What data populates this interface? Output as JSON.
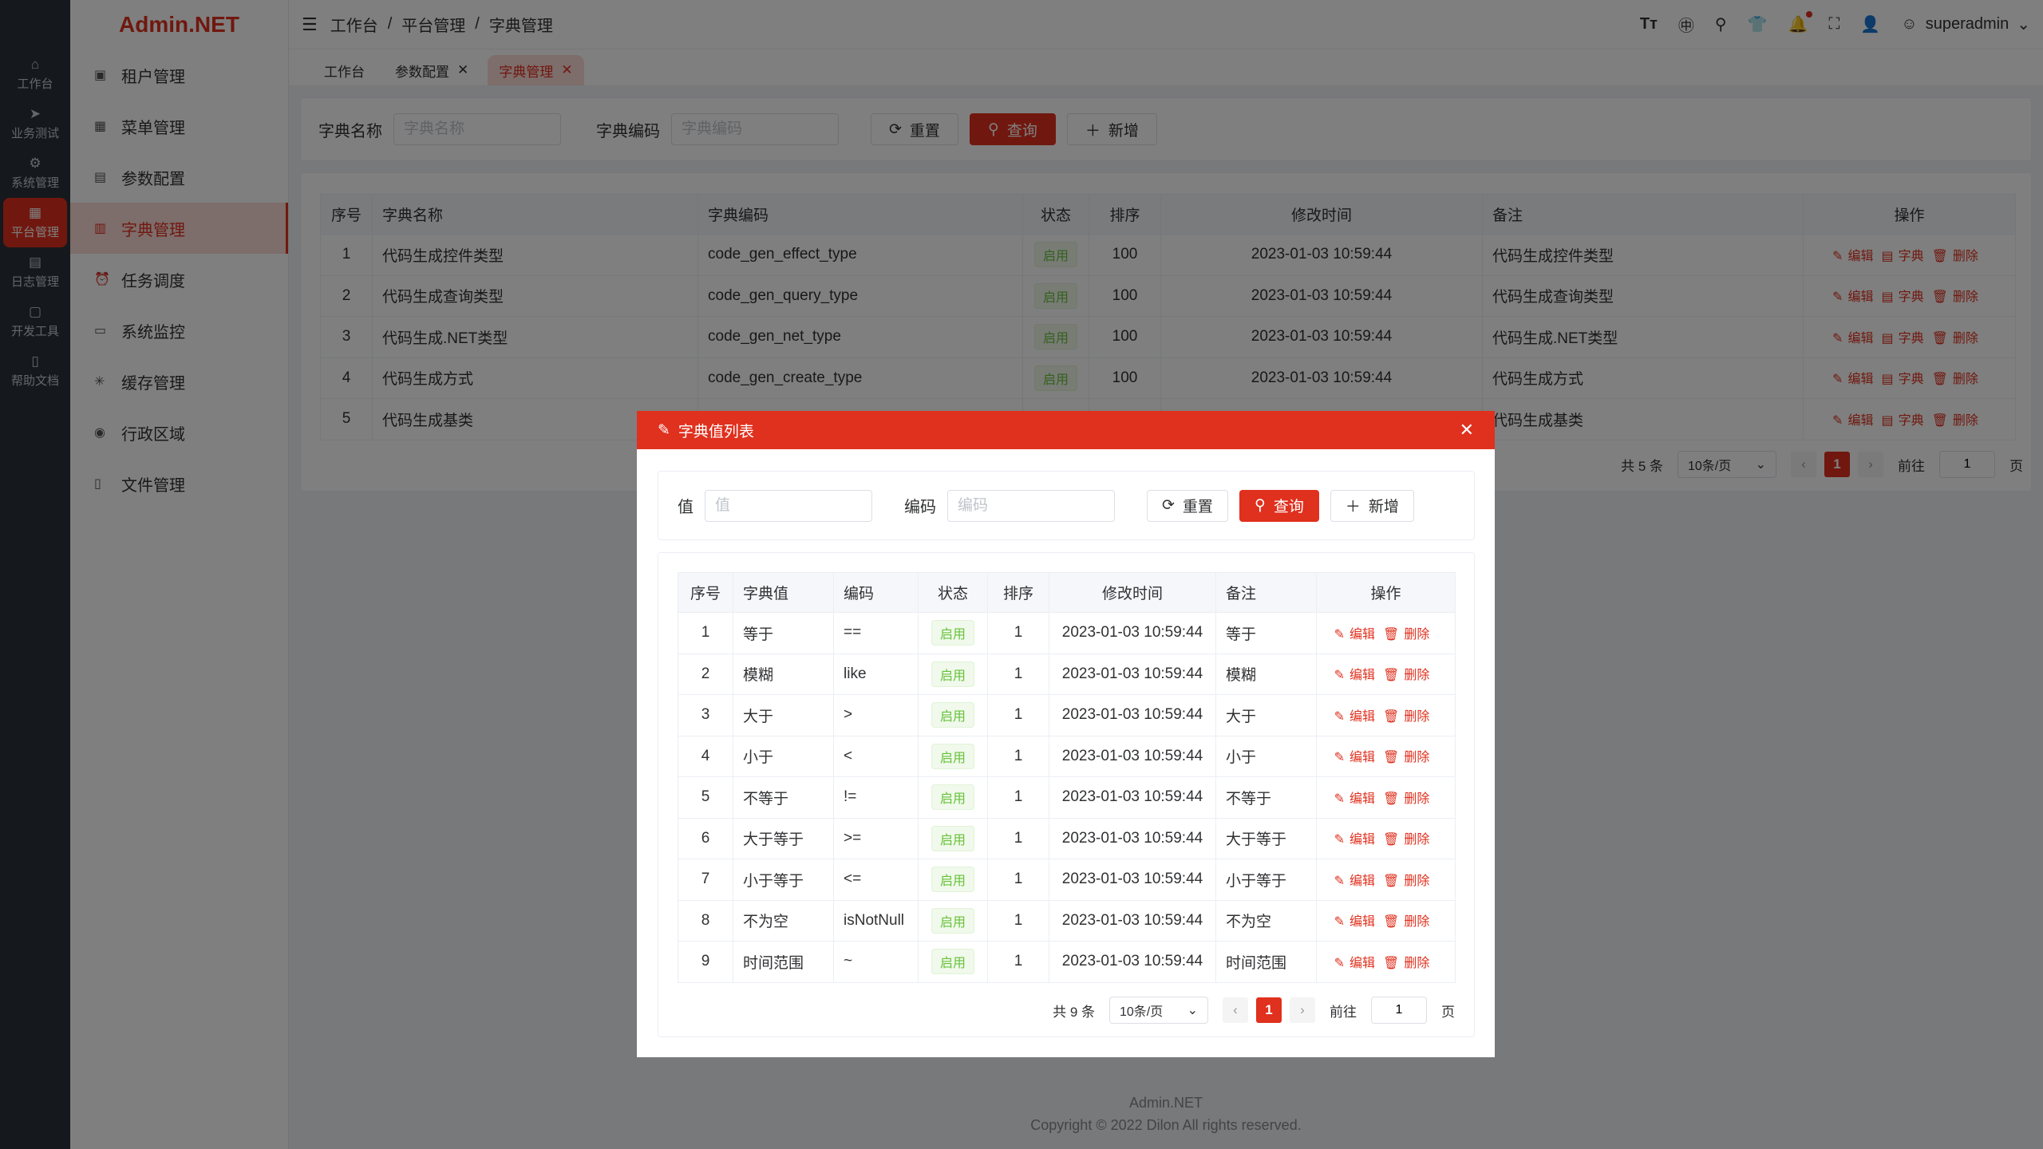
{
  "rail": [
    {
      "label": "工作台",
      "icon": "home-icon",
      "g": "⌂"
    },
    {
      "label": "业务测试",
      "icon": "send-icon",
      "g": "➤"
    },
    {
      "label": "系统管理",
      "icon": "gear-icon",
      "g": "⚙"
    },
    {
      "label": "平台管理",
      "icon": "grid-icon",
      "g": "▦",
      "active": true
    },
    {
      "label": "日志管理",
      "icon": "document-icon",
      "g": "▤"
    },
    {
      "label": "开发工具",
      "icon": "chip-icon",
      "g": "▢"
    },
    {
      "label": "帮助文档",
      "icon": "book-icon",
      "g": "▯"
    }
  ],
  "brand": "Admin.NET",
  "submenu": [
    {
      "label": "租户管理",
      "g": "▣"
    },
    {
      "label": "菜单管理",
      "g": "▦"
    },
    {
      "label": "参数配置",
      "g": "▤"
    },
    {
      "label": "字典管理",
      "g": "▥",
      "active": true
    },
    {
      "label": "任务调度",
      "g": "⏰"
    },
    {
      "label": "系统监控",
      "g": "▭"
    },
    {
      "label": "缓存管理",
      "g": "✳"
    },
    {
      "label": "行政区域",
      "g": "◉"
    },
    {
      "label": "文件管理",
      "g": "▯"
    }
  ],
  "header": {
    "breadcrumb": [
      "工作台",
      "平台管理",
      "字典管理"
    ],
    "separator": "/",
    "user": "superadmin"
  },
  "tabs": [
    {
      "label": "工作台"
    },
    {
      "label": "参数配置",
      "closable": true
    },
    {
      "label": "字典管理",
      "closable": true,
      "active": true
    }
  ],
  "search": {
    "name_label": "字典名称",
    "name_placeholder": "字典名称",
    "code_label": "字典编码",
    "code_placeholder": "字典编码",
    "reset": "重置",
    "query": "查询",
    "add": "新增"
  },
  "main_table": {
    "columns": [
      "序号",
      "字典名称",
      "字典编码",
      "状态",
      "排序",
      "修改时间",
      "备注",
      "操作"
    ],
    "rows": [
      [
        "1",
        "代码生成控件类型",
        "code_gen_effect_type",
        "启用",
        "100",
        "2023-01-03 10:59:44",
        "代码生成控件类型"
      ],
      [
        "2",
        "代码生成查询类型",
        "code_gen_query_type",
        "启用",
        "100",
        "2023-01-03 10:59:44",
        "代码生成查询类型"
      ],
      [
        "3",
        "代码生成.NET类型",
        "code_gen_net_type",
        "启用",
        "100",
        "2023-01-03 10:59:44",
        "代码生成.NET类型"
      ],
      [
        "4",
        "代码生成方式",
        "code_gen_create_type",
        "启用",
        "100",
        "2023-01-03 10:59:44",
        "代码生成方式"
      ],
      [
        "5",
        "代码生成基类",
        "",
        "",
        "",
        "",
        "代码生成基类"
      ]
    ],
    "actions": [
      "编辑",
      "字典",
      "删除"
    ]
  },
  "main_pager": {
    "total": "共 5 条",
    "page_size": "10条/页",
    "current": "1",
    "goto_label": "前往",
    "goto_value": "1",
    "page_suffix": "页"
  },
  "dialog": {
    "title": "字典值列表",
    "value_label": "值",
    "value_placeholder": "值",
    "code_label": "编码",
    "code_placeholder": "编码",
    "reset": "重置",
    "query": "查询",
    "add": "新增",
    "columns": [
      "序号",
      "字典值",
      "编码",
      "状态",
      "排序",
      "修改时间",
      "备注",
      "操作"
    ],
    "rows": [
      [
        "1",
        "等于",
        "==",
        "启用",
        "1",
        "2023-01-03 10:59:44",
        "等于"
      ],
      [
        "2",
        "模糊",
        "like",
        "启用",
        "1",
        "2023-01-03 10:59:44",
        "模糊"
      ],
      [
        "3",
        "大于",
        ">",
        "启用",
        "1",
        "2023-01-03 10:59:44",
        "大于"
      ],
      [
        "4",
        "小于",
        "<",
        "启用",
        "1",
        "2023-01-03 10:59:44",
        "小于"
      ],
      [
        "5",
        "不等于",
        "!=",
        "启用",
        "1",
        "2023-01-03 10:59:44",
        "不等于"
      ],
      [
        "6",
        "大于等于",
        ">=",
        "启用",
        "1",
        "2023-01-03 10:59:44",
        "大于等于"
      ],
      [
        "7",
        "小于等于",
        "<=",
        "启用",
        "1",
        "2023-01-03 10:59:44",
        "小于等于"
      ],
      [
        "8",
        "不为空",
        "isNotNull",
        "启用",
        "1",
        "2023-01-03 10:59:44",
        "不为空"
      ],
      [
        "9",
        "时间范围",
        "~",
        "启用",
        "1",
        "2023-01-03 10:59:44",
        "时间范围"
      ]
    ],
    "actions": [
      "编辑",
      "删除"
    ],
    "pager": {
      "total": "共 9 条",
      "page_size": "10条/页",
      "current": "1",
      "goto_label": "前往",
      "goto_value": "1",
      "page_suffix": "页"
    }
  },
  "footer": {
    "line1": "Admin.NET",
    "line2": "Copyright © 2022 Dilon All rights reserved."
  },
  "colors": {
    "accent": "#e0301e",
    "success": "#67c23a"
  }
}
